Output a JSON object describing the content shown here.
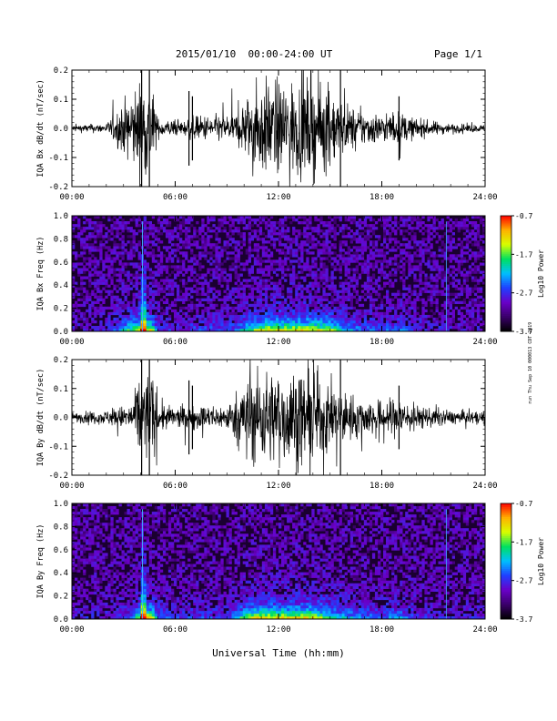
{
  "header": {
    "title": "2015/01/10  00:00-24:00 UT",
    "page": "Page 1/1"
  },
  "side_note": "run Thu Sep 10 000013 CDT 2019",
  "xlabel": "Universal Time (hh:mm)",
  "colors": {
    "background": "#ffffff",
    "trace": "#000000",
    "spec_background": "#1a0030",
    "colormap": [
      "#000000",
      "#3a006a",
      "#6a00c8",
      "#2040ff",
      "#00c0ff",
      "#00e060",
      "#d8ff00",
      "#ffb000",
      "#ff0000"
    ]
  },
  "chart_data": [
    {
      "type": "line",
      "id": "bx-timeseries",
      "ylabel": "IQA Bx dB/dt (nT/sec)",
      "xlim": [
        "00:00",
        "24:00"
      ],
      "ylim": [
        -0.2,
        0.2
      ],
      "yticks": [
        "0.2",
        "0.1",
        "0.0",
        "-0.1",
        "-0.2"
      ],
      "xticks": [
        "00:00",
        "06:00",
        "12:00",
        "18:00",
        "24:00"
      ],
      "envelope": {
        "t_hours": [
          0,
          2,
          4,
          4.1,
          4.6,
          5,
          6.5,
          7,
          9.5,
          10,
          11,
          12,
          13,
          14,
          14.8,
          15.6,
          16.5,
          18,
          19,
          20,
          22,
          24
        ],
        "amplitude": [
          0.015,
          0.02,
          0.2,
          0.2,
          0.2,
          0.04,
          0.03,
          0.05,
          0.06,
          0.12,
          0.2,
          0.2,
          0.2,
          0.2,
          0.18,
          0.12,
          0.08,
          0.06,
          0.07,
          0.04,
          0.02,
          0.015
        ]
      }
    },
    {
      "type": "heatmap",
      "id": "bx-spectrogram",
      "ylabel": "IQA Bx Freq (Hz)",
      "xlim": [
        "00:00",
        "24:00"
      ],
      "ylim": [
        0.0,
        1.0
      ],
      "yticks": [
        "1.0",
        "0.8",
        "0.6",
        "0.4",
        "0.2",
        "0.0"
      ],
      "xticks": [
        "00:00",
        "06:00",
        "12:00",
        "18:00",
        "24:00"
      ],
      "colorbar": {
        "label": "Log10 Power",
        "range": [
          -3.7,
          -0.7
        ],
        "ticks": [
          "-0.7",
          "-1.7",
          "-2.7",
          "-3.7"
        ]
      }
    },
    {
      "type": "line",
      "id": "by-timeseries",
      "ylabel": "IQA By dB/dt (nT/sec)",
      "xlim": [
        "00:00",
        "24:00"
      ],
      "ylim": [
        -0.2,
        0.2
      ],
      "yticks": [
        "0.2",
        "0.1",
        "0.0",
        "-0.1",
        "-0.2"
      ],
      "xticks": [
        "00:00",
        "06:00",
        "12:00",
        "18:00",
        "24:00"
      ],
      "envelope": {
        "t_hours": [
          0,
          2,
          3.5,
          4,
          4.6,
          5,
          6,
          7,
          9,
          10.5,
          11,
          12,
          13,
          14,
          15,
          16,
          17,
          18,
          19,
          20,
          22,
          24
        ],
        "amplitude": [
          0.02,
          0.03,
          0.06,
          0.2,
          0.2,
          0.07,
          0.04,
          0.05,
          0.05,
          0.2,
          0.2,
          0.2,
          0.2,
          0.2,
          0.14,
          0.1,
          0.08,
          0.07,
          0.09,
          0.05,
          0.03,
          0.025
        ]
      }
    },
    {
      "type": "heatmap",
      "id": "by-spectrogram",
      "ylabel": "IQA By Freq (Hz)",
      "xlim": [
        "00:00",
        "24:00"
      ],
      "ylim": [
        0.0,
        1.0
      ],
      "yticks": [
        "1.0",
        "0.8",
        "0.6",
        "0.4",
        "0.2",
        "0.0"
      ],
      "xticks": [
        "00:00",
        "06:00",
        "12:00",
        "18:00",
        "24:00"
      ],
      "colorbar": {
        "label": "Log10 Power",
        "range": [
          -3.7,
          -0.7
        ],
        "ticks": [
          "-0.7",
          "-1.7",
          "-2.7",
          "-3.7"
        ]
      }
    }
  ]
}
